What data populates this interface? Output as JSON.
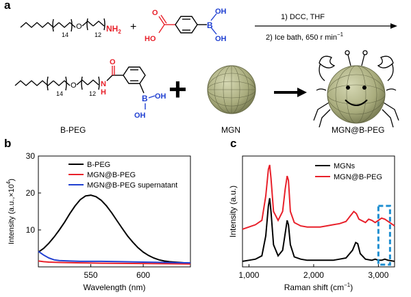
{
  "panel_a": {
    "letter": "a",
    "reagent_peg": {
      "sub14": "14",
      "o": "O",
      "sub12": "12",
      "nh2": "NH",
      "nh2_sub": "2"
    },
    "reagent_acid": {
      "ho": "HO",
      "o": "O",
      "b": "B",
      "oh1": "OH",
      "oh2": "OH"
    },
    "plus": "+",
    "conditions": {
      "step1": "1) DCC, THF",
      "step2": "2) Ice bath, 650 r min",
      "step2_sup": "−1"
    },
    "product_bpeg": {
      "sub14": "14",
      "o": "O",
      "sub12": "12",
      "nh": "N",
      "h": "H",
      "co": "O",
      "b": "B",
      "oh1": "OH",
      "oh2": "OH"
    },
    "labels": {
      "bpeg": "B-PEG",
      "mgn": "MGN",
      "composite": "MGN@B-PEG"
    },
    "colors": {
      "red": "#e8202a",
      "blue": "#1f3fd1",
      "sphere": "#b3b68a"
    }
  },
  "panel_b": {
    "letter": "b",
    "chart_data": {
      "type": "line",
      "title": "",
      "xlabel": "Wavelength (nm)",
      "ylabel": "Intensity (a.u.,×10",
      "ylabel_sup": "4",
      "ylabel_end": ")",
      "xlim": [
        500,
        645
      ],
      "ylim": [
        0,
        30
      ],
      "xticks": [
        550,
        600
      ],
      "yticks": [
        10,
        20,
        30
      ],
      "legend_position": "top-right",
      "series": [
        {
          "name": "B-PEG",
          "color": "#000000",
          "x": [
            500,
            505,
            510,
            515,
            520,
            525,
            530,
            535,
            540,
            545,
            550,
            555,
            560,
            565,
            570,
            575,
            580,
            585,
            590,
            595,
            600,
            605,
            610,
            615,
            620,
            625,
            630,
            635,
            640,
            645
          ],
          "y": [
            4.0,
            5.0,
            6.4,
            8.1,
            10.0,
            12.1,
            14.4,
            16.5,
            18.2,
            19.2,
            19.4,
            19.0,
            18.0,
            16.5,
            14.6,
            12.5,
            10.4,
            8.4,
            6.7,
            5.2,
            4.0,
            3.1,
            2.4,
            1.9,
            1.6,
            1.4,
            1.3,
            1.2,
            1.1,
            1.0
          ]
        },
        {
          "name": "MGN@B-PEG",
          "color": "#e8202a",
          "x": [
            500,
            505,
            510,
            520,
            540,
            560,
            580,
            600,
            620,
            645
          ],
          "y": [
            1.6,
            1.4,
            1.3,
            1.2,
            1.1,
            1.0,
            0.95,
            0.9,
            0.85,
            0.8
          ]
        },
        {
          "name": "MGN@B-PEG supernatant",
          "color": "#1f3fd1",
          "x": [
            500,
            505,
            510,
            515,
            520,
            530,
            540,
            560,
            580,
            600,
            620,
            645
          ],
          "y": [
            4.2,
            3.2,
            2.4,
            1.9,
            1.7,
            1.6,
            1.5,
            1.5,
            1.4,
            1.3,
            1.2,
            1.1
          ]
        }
      ]
    }
  },
  "panel_c": {
    "letter": "c",
    "chart_data": {
      "type": "line",
      "title": "",
      "xlabel": "Raman shift (cm",
      "xlabel_sup": "−1",
      "xlabel_end": ")",
      "ylabel": "Intensity (a.u.)",
      "xlim": [
        900,
        3250
      ],
      "ylim": [
        0,
        1
      ],
      "xticks": [
        1000,
        2000,
        3000
      ],
      "xtick_labels": [
        "1,000",
        "2,000",
        "3,000"
      ],
      "legend_position": "top-right",
      "highlight_box_x": [
        3000,
        3180
      ],
      "series": [
        {
          "name": "MGNs",
          "color": "#000000",
          "x": [
            900,
            1000,
            1100,
            1200,
            1260,
            1300,
            1320,
            1340,
            1380,
            1450,
            1520,
            1560,
            1590,
            1610,
            1640,
            1700,
            1800,
            1900,
            2000,
            2100,
            2200,
            2300,
            2400,
            2500,
            2600,
            2650,
            2680,
            2720,
            2800,
            2900,
            2950,
            3000,
            3050,
            3100,
            3150,
            3250
          ],
          "y": [
            0.05,
            0.06,
            0.07,
            0.1,
            0.28,
            0.55,
            0.62,
            0.5,
            0.2,
            0.1,
            0.15,
            0.3,
            0.42,
            0.38,
            0.2,
            0.09,
            0.07,
            0.06,
            0.06,
            0.06,
            0.06,
            0.06,
            0.07,
            0.08,
            0.15,
            0.22,
            0.21,
            0.12,
            0.07,
            0.06,
            0.07,
            0.06,
            0.06,
            0.07,
            0.06,
            0.05
          ]
        },
        {
          "name": "MGN@B-PEG",
          "color": "#e8202a",
          "x": [
            900,
            1000,
            1100,
            1200,
            1260,
            1300,
            1320,
            1340,
            1380,
            1450,
            1520,
            1560,
            1590,
            1610,
            1640,
            1700,
            1800,
            1900,
            2000,
            2100,
            2200,
            2300,
            2400,
            2500,
            2580,
            2620,
            2660,
            2700,
            2800,
            2850,
            2900,
            2950,
            3000,
            3050,
            3100,
            3150,
            3250
          ],
          "y": [
            0.34,
            0.36,
            0.38,
            0.42,
            0.64,
            0.88,
            0.92,
            0.8,
            0.5,
            0.42,
            0.5,
            0.7,
            0.82,
            0.78,
            0.5,
            0.4,
            0.37,
            0.36,
            0.36,
            0.36,
            0.37,
            0.38,
            0.39,
            0.41,
            0.47,
            0.5,
            0.48,
            0.43,
            0.4,
            0.43,
            0.42,
            0.4,
            0.42,
            0.44,
            0.43,
            0.41,
            0.37
          ]
        }
      ]
    }
  }
}
